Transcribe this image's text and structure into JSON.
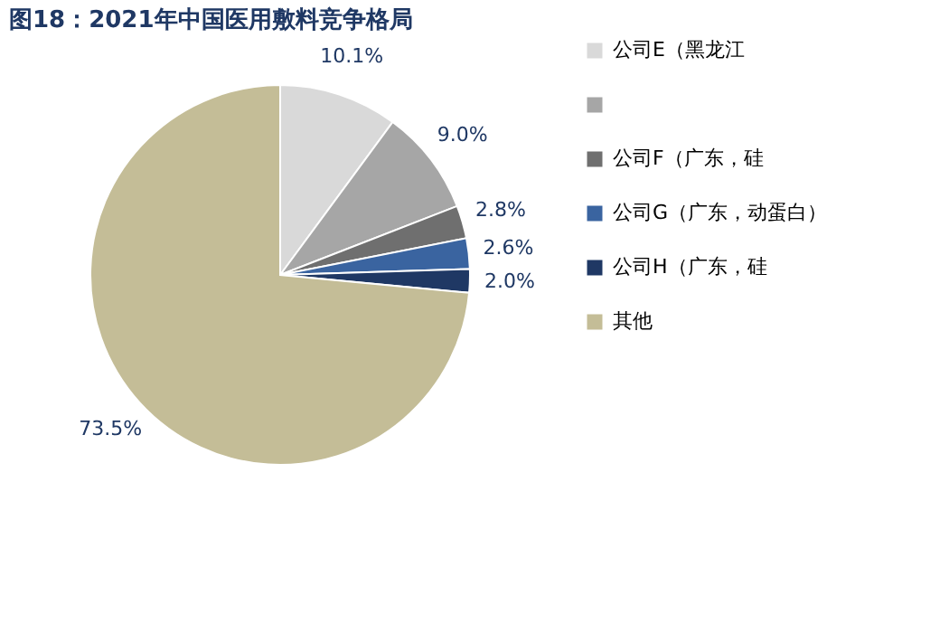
{
  "chart_data": {
    "type": "pie",
    "title": "图18：2021年中国医用敷料竞争格局",
    "categories": [
      "公司E（黑龙江",
      null,
      "公司F（广东，硅",
      "公司G（广东，动蛋白）",
      "公司H（广东，硅",
      "其他"
    ],
    "values": [
      10.1,
      9.0,
      2.8,
      2.6,
      2.0,
      73.5
    ],
    "colors": [
      "#d9d9d9",
      "#a6a6a6",
      "#6f6f6f",
      "#3a64a0",
      "#1f3864",
      "#c4bd97"
    ],
    "value_labels": [
      "10.1%",
      "9.0%",
      "2.8%",
      "2.6%",
      "2.0%",
      "73.5%"
    ],
    "legend": "right"
  }
}
